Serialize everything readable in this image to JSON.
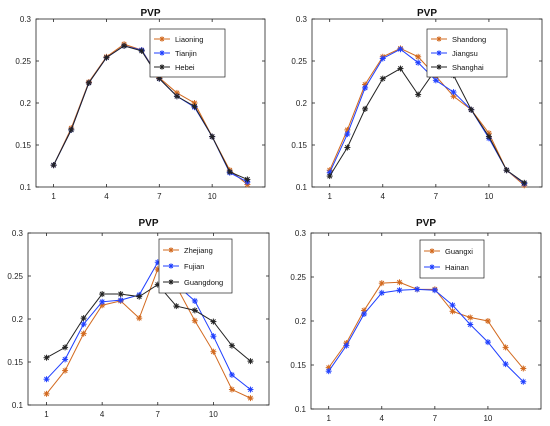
{
  "chart_data": [
    {
      "type": "line",
      "title": "PVP",
      "xlabel": "",
      "ylabel": "",
      "x": [
        1,
        2,
        3,
        4,
        5,
        6,
        7,
        8,
        9,
        10,
        11,
        12
      ],
      "xticks": [
        1,
        4,
        7,
        10
      ],
      "yticks": [
        "0.1",
        "0.15",
        "0.2",
        "0.25",
        "0.3"
      ],
      "xlim": [
        0,
        13
      ],
      "ylim": [
        0.1,
        0.3
      ],
      "grid": false,
      "legend_position": "top-right",
      "series": [
        {
          "name": "Liaoning",
          "color": "#d2691e",
          "marker": "asterisk",
          "values": [
            0.126,
            0.17,
            0.225,
            0.255,
            0.27,
            0.263,
            0.23,
            0.212,
            0.2,
            0.16,
            0.12,
            0.103
          ]
        },
        {
          "name": "Tianjin",
          "color": "#1f3fff",
          "marker": "asterisk",
          "values": [
            0.126,
            0.168,
            0.224,
            0.254,
            0.268,
            0.263,
            0.229,
            0.208,
            0.195,
            0.16,
            0.117,
            0.106
          ]
        },
        {
          "name": "Hebei",
          "color": "#222222",
          "marker": "asterisk",
          "values": [
            0.126,
            0.168,
            0.224,
            0.254,
            0.268,
            0.262,
            0.229,
            0.208,
            0.196,
            0.16,
            0.118,
            0.109
          ]
        }
      ]
    },
    {
      "type": "line",
      "title": "PVP",
      "xlabel": "",
      "ylabel": "",
      "x": [
        1,
        2,
        3,
        4,
        5,
        6,
        7,
        8,
        9,
        10,
        11,
        12
      ],
      "xticks": [
        1,
        4,
        7,
        10
      ],
      "yticks": [
        "0.1",
        "0.15",
        "0.2",
        "0.25",
        "0.3"
      ],
      "xlim": [
        0,
        13
      ],
      "ylim": [
        0.1,
        0.3
      ],
      "grid": false,
      "legend_position": "top-right",
      "series": [
        {
          "name": "Shandong",
          "color": "#d2691e",
          "marker": "asterisk",
          "values": [
            0.12,
            0.168,
            0.222,
            0.255,
            0.265,
            0.255,
            0.232,
            0.208,
            0.192,
            0.164,
            0.12,
            0.102
          ]
        },
        {
          "name": "Jiangsu",
          "color": "#1f3fff",
          "marker": "asterisk",
          "values": [
            0.117,
            0.163,
            0.218,
            0.253,
            0.264,
            0.248,
            0.227,
            0.213,
            0.192,
            0.158,
            0.12,
            0.104
          ]
        },
        {
          "name": "Shanghai",
          "color": "#222222",
          "marker": "asterisk",
          "values": [
            0.113,
            0.147,
            0.193,
            0.229,
            0.241,
            0.21,
            0.24,
            0.233,
            0.192,
            0.16,
            0.12,
            0.105
          ]
        }
      ]
    },
    {
      "type": "line",
      "title": "PVP",
      "xlabel": "",
      "ylabel": "",
      "x": [
        1,
        2,
        3,
        4,
        5,
        6,
        7,
        8,
        9,
        10,
        11,
        12
      ],
      "xticks": [
        1,
        4,
        7,
        10
      ],
      "yticks": [
        "0.1",
        "0.15",
        "0.2",
        "0.25",
        "0.3"
      ],
      "xlim": [
        0,
        13
      ],
      "ylim": [
        0.1,
        0.3
      ],
      "grid": false,
      "legend_position": "top-right",
      "series": [
        {
          "name": "Zhejiang",
          "color": "#d2691e",
          "marker": "asterisk",
          "values": [
            0.113,
            0.14,
            0.183,
            0.216,
            0.221,
            0.201,
            0.258,
            0.238,
            0.198,
            0.162,
            0.118,
            0.108
          ]
        },
        {
          "name": "Fujian",
          "color": "#1f3fff",
          "marker": "asterisk",
          "values": [
            0.13,
            0.153,
            0.194,
            0.22,
            0.222,
            0.228,
            0.266,
            0.24,
            0.221,
            0.18,
            0.135,
            0.118
          ]
        },
        {
          "name": "Guangdong",
          "color": "#222222",
          "marker": "asterisk",
          "values": [
            0.155,
            0.167,
            0.201,
            0.229,
            0.229,
            0.226,
            0.24,
            0.215,
            0.21,
            0.197,
            0.169,
            0.151
          ]
        }
      ]
    },
    {
      "type": "line",
      "title": "PVP",
      "xlabel": "",
      "ylabel": "",
      "x": [
        1,
        2,
        3,
        4,
        5,
        6,
        7,
        8,
        9,
        10,
        11,
        12
      ],
      "xticks": [
        1,
        4,
        7,
        10
      ],
      "yticks": [
        "0.1",
        "0.15",
        "0.2",
        "0.25",
        "0.3"
      ],
      "xlim": [
        0,
        13
      ],
      "ylim": [
        0.1,
        0.3
      ],
      "grid": false,
      "legend_position": "top-right",
      "series": [
        {
          "name": "Guangxi",
          "color": "#d2691e",
          "marker": "asterisk",
          "values": [
            0.147,
            0.175,
            0.212,
            0.243,
            0.244,
            0.236,
            0.236,
            0.211,
            0.204,
            0.2,
            0.17,
            0.146
          ]
        },
        {
          "name": "Hainan",
          "color": "#1f3fff",
          "marker": "asterisk",
          "values": [
            0.143,
            0.172,
            0.208,
            0.232,
            0.235,
            0.236,
            0.235,
            0.218,
            0.196,
            0.176,
            0.151,
            0.131
          ]
        }
      ]
    }
  ]
}
